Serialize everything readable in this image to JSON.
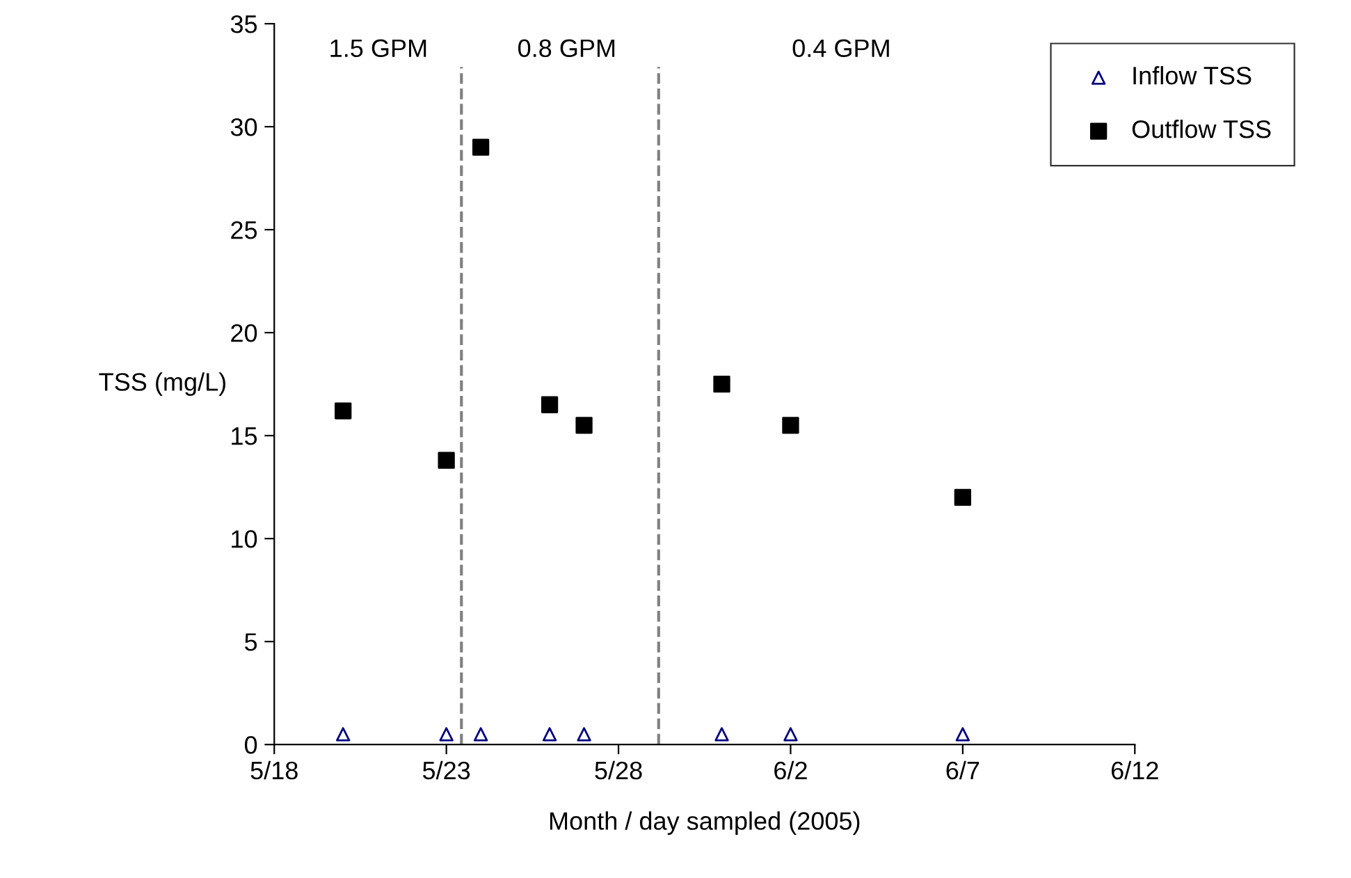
{
  "chart_data": {
    "type": "scatter",
    "xlabel": "Month / day sampled (2005)",
    "ylabel": "TSS (mg/L)",
    "x": [
      "2005-05-20",
      "2005-05-23",
      "2005-05-24",
      "2005-05-26",
      "2005-05-27",
      "2005-05-31",
      "2005-06-02",
      "2005-06-07"
    ],
    "series": [
      {
        "name": "Inflow TSS",
        "color": "#000080",
        "marker": "triangle",
        "values": [
          0.5,
          0.5,
          0.5,
          0.5,
          0.5,
          0.5,
          0.5,
          0.5
        ]
      },
      {
        "name": "Outflow TSS",
        "color": "#000000",
        "marker": "square",
        "values": [
          16.2,
          13.8,
          29.0,
          16.5,
          15.5,
          17.5,
          15.5,
          12.0
        ]
      }
    ],
    "xlim": [
      "2005-05-18",
      "2005-06-12"
    ],
    "xticks": [
      {
        "value": "2005-05-18",
        "label": "5/18"
      },
      {
        "value": "2005-05-23",
        "label": "5/23"
      },
      {
        "value": "2005-05-28",
        "label": "5/28"
      },
      {
        "value": "2005-06-02",
        "label": "6/2"
      },
      {
        "value": "2005-06-07",
        "label": "6/7"
      },
      {
        "value": "2005-06-12",
        "label": "6/12"
      }
    ],
    "ylim": [
      0,
      35
    ],
    "yticks": [
      0,
      5,
      10,
      15,
      20,
      25,
      30,
      35
    ],
    "ref_lines": [
      {
        "axis": "x",
        "value": "2005-05-23T10:30",
        "color": "#808080",
        "line_style": "dashed"
      },
      {
        "axis": "x",
        "value": "2005-05-29T04:00",
        "color": "#808080",
        "line_style": "dashed"
      }
    ],
    "annotations": [
      "1.5 GPM",
      "0.8 GPM",
      "0.4 GPM"
    ],
    "grid": false,
    "legend": "top right"
  }
}
